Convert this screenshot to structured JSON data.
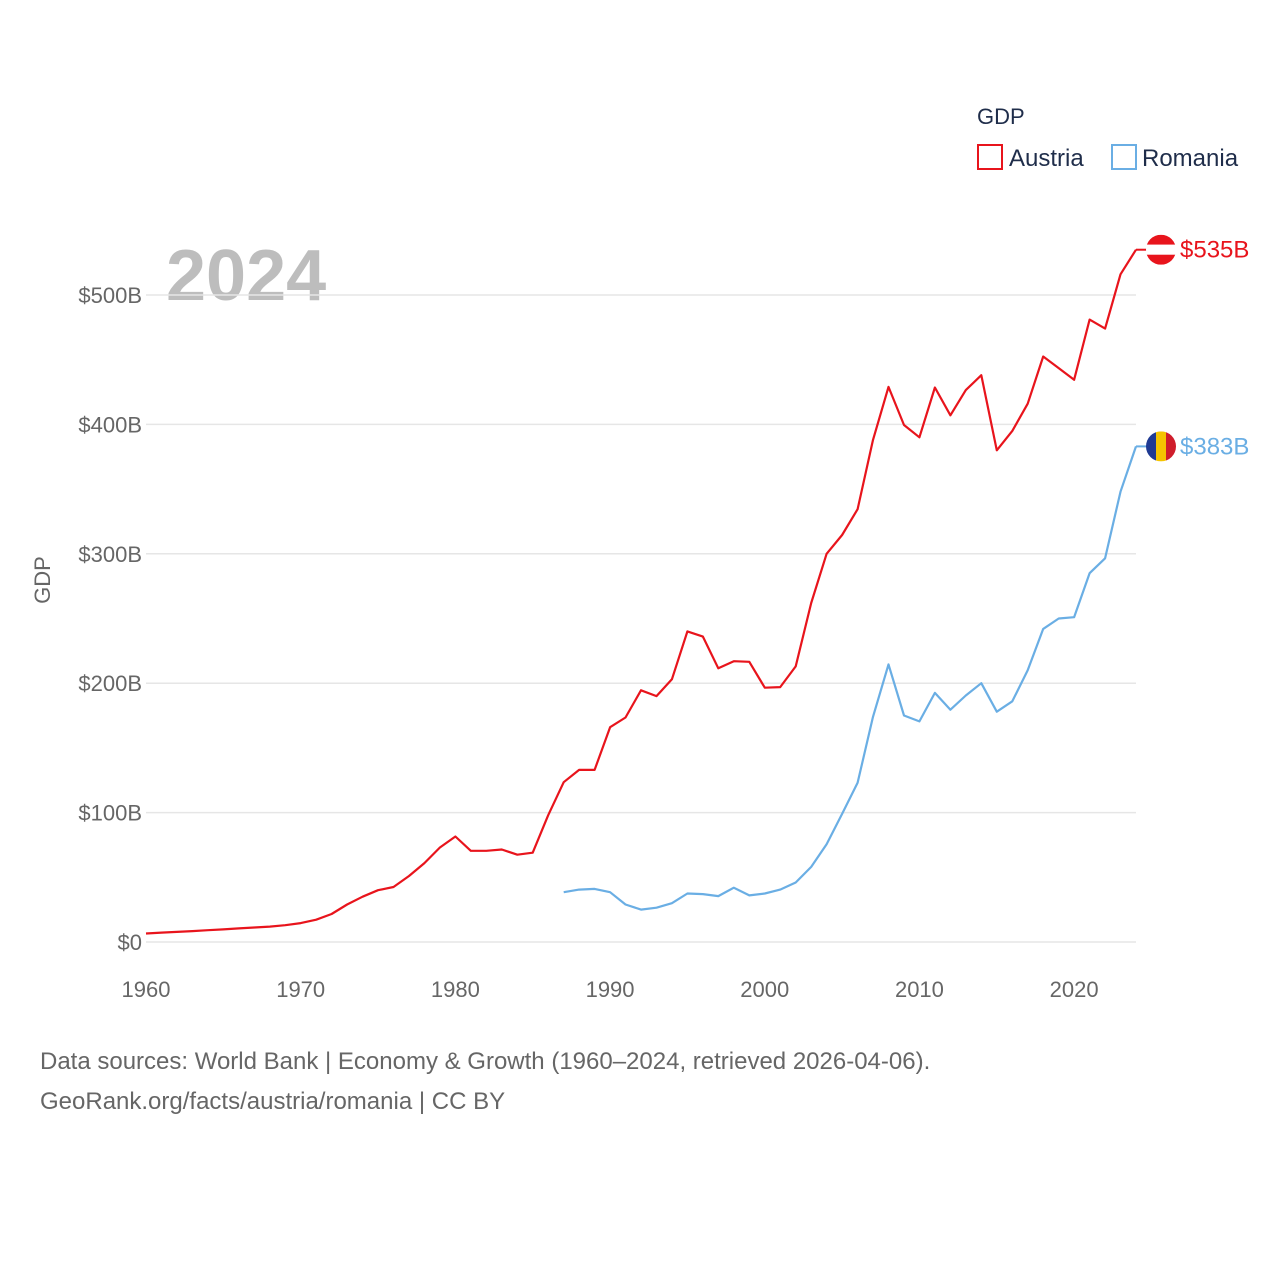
{
  "chart_data": {
    "type": "line",
    "title": "GDP",
    "year_label": "2024",
    "ylabel": "GDP",
    "xlabel": "",
    "xlim": [
      1960,
      2024
    ],
    "ylim": [
      0,
      550
    ],
    "y_ticks": [
      0,
      100,
      200,
      300,
      400,
      500
    ],
    "y_tick_labels": [
      "$0",
      "$100B",
      "$200B",
      "$300B",
      "$400B",
      "$500B"
    ],
    "x_ticks": [
      1960,
      1970,
      1980,
      1990,
      2000,
      2010,
      2020
    ],
    "x_tick_labels": [
      "1960",
      "1970",
      "1980",
      "1990",
      "2000",
      "2010",
      "2020"
    ],
    "legend_title": "GDP",
    "legend_position": "top-right",
    "grid": true,
    "series": [
      {
        "name": "Austria",
        "color": "#e8141c",
        "end_label": "$535B",
        "flag": "austria-flag",
        "x": [
          1960,
          1961,
          1962,
          1963,
          1964,
          1965,
          1966,
          1967,
          1968,
          1969,
          1970,
          1971,
          1972,
          1973,
          1974,
          1975,
          1976,
          1977,
          1978,
          1979,
          1980,
          1981,
          1982,
          1983,
          1984,
          1985,
          1986,
          1987,
          1988,
          1989,
          1990,
          1991,
          1992,
          1993,
          1994,
          1995,
          1996,
          1997,
          1998,
          1999,
          2000,
          2001,
          2002,
          2003,
          2004,
          2005,
          2006,
          2007,
          2008,
          2009,
          2010,
          2011,
          2012,
          2013,
          2014,
          2015,
          2016,
          2017,
          2018,
          2019,
          2020,
          2021,
          2022,
          2023,
          2024
        ],
        "values": [
          6.6,
          7.3,
          7.8,
          8.4,
          9.1,
          9.7,
          10.5,
          11.2,
          11.9,
          13.0,
          14.6,
          17.2,
          21.6,
          29.0,
          35.0,
          40.0,
          42.5,
          51.0,
          61.0,
          73.0,
          81.5,
          70.5,
          70.5,
          71.5,
          67.5,
          69.0,
          98.0,
          123.5,
          133.0,
          133.0,
          166.0,
          173.5,
          194.5,
          190.0,
          203.0,
          240.0,
          236.0,
          211.5,
          217.0,
          216.5,
          196.5,
          197.0,
          213.0,
          262.0,
          300.0,
          314.5,
          334.5,
          388.0,
          429.0,
          399.5,
          390.0,
          428.5,
          407.0,
          426.5,
          438.0,
          380.0,
          395.0,
          416.0,
          452.5,
          443.5,
          434.5,
          481.0,
          474.0,
          516.0,
          535.0
        ]
      },
      {
        "name": "Romania",
        "color": "#6aaee4",
        "end_label": "$383B",
        "flag": "romania-flag",
        "x": [
          1987,
          1988,
          1989,
          1990,
          1991,
          1992,
          1993,
          1994,
          1995,
          1996,
          1997,
          1998,
          1999,
          2000,
          2001,
          2002,
          2003,
          2004,
          2005,
          2006,
          2007,
          2008,
          2009,
          2010,
          2011,
          2012,
          2013,
          2014,
          2015,
          2016,
          2017,
          2018,
          2019,
          2020,
          2021,
          2022,
          2023,
          2024
        ],
        "values": [
          38.5,
          40.5,
          41.0,
          38.5,
          29.0,
          25.0,
          26.5,
          30.0,
          37.5,
          37.0,
          35.5,
          42.0,
          36.0,
          37.5,
          40.5,
          46.0,
          58.0,
          75.5,
          99.0,
          123.0,
          174.0,
          214.5,
          175.0,
          170.5,
          192.5,
          179.5,
          190.5,
          200.0,
          178.0,
          186.0,
          210.0,
          242.0,
          250.0,
          251.0,
          285.0,
          296.5,
          348.0,
          383.0
        ]
      }
    ]
  },
  "footer": {
    "line1": "Data sources: World Bank | Economy & Growth (1960–2024, retrieved 2026-04-06).",
    "line2": "GeoRank.org/facts/austria/romania | CC BY"
  }
}
